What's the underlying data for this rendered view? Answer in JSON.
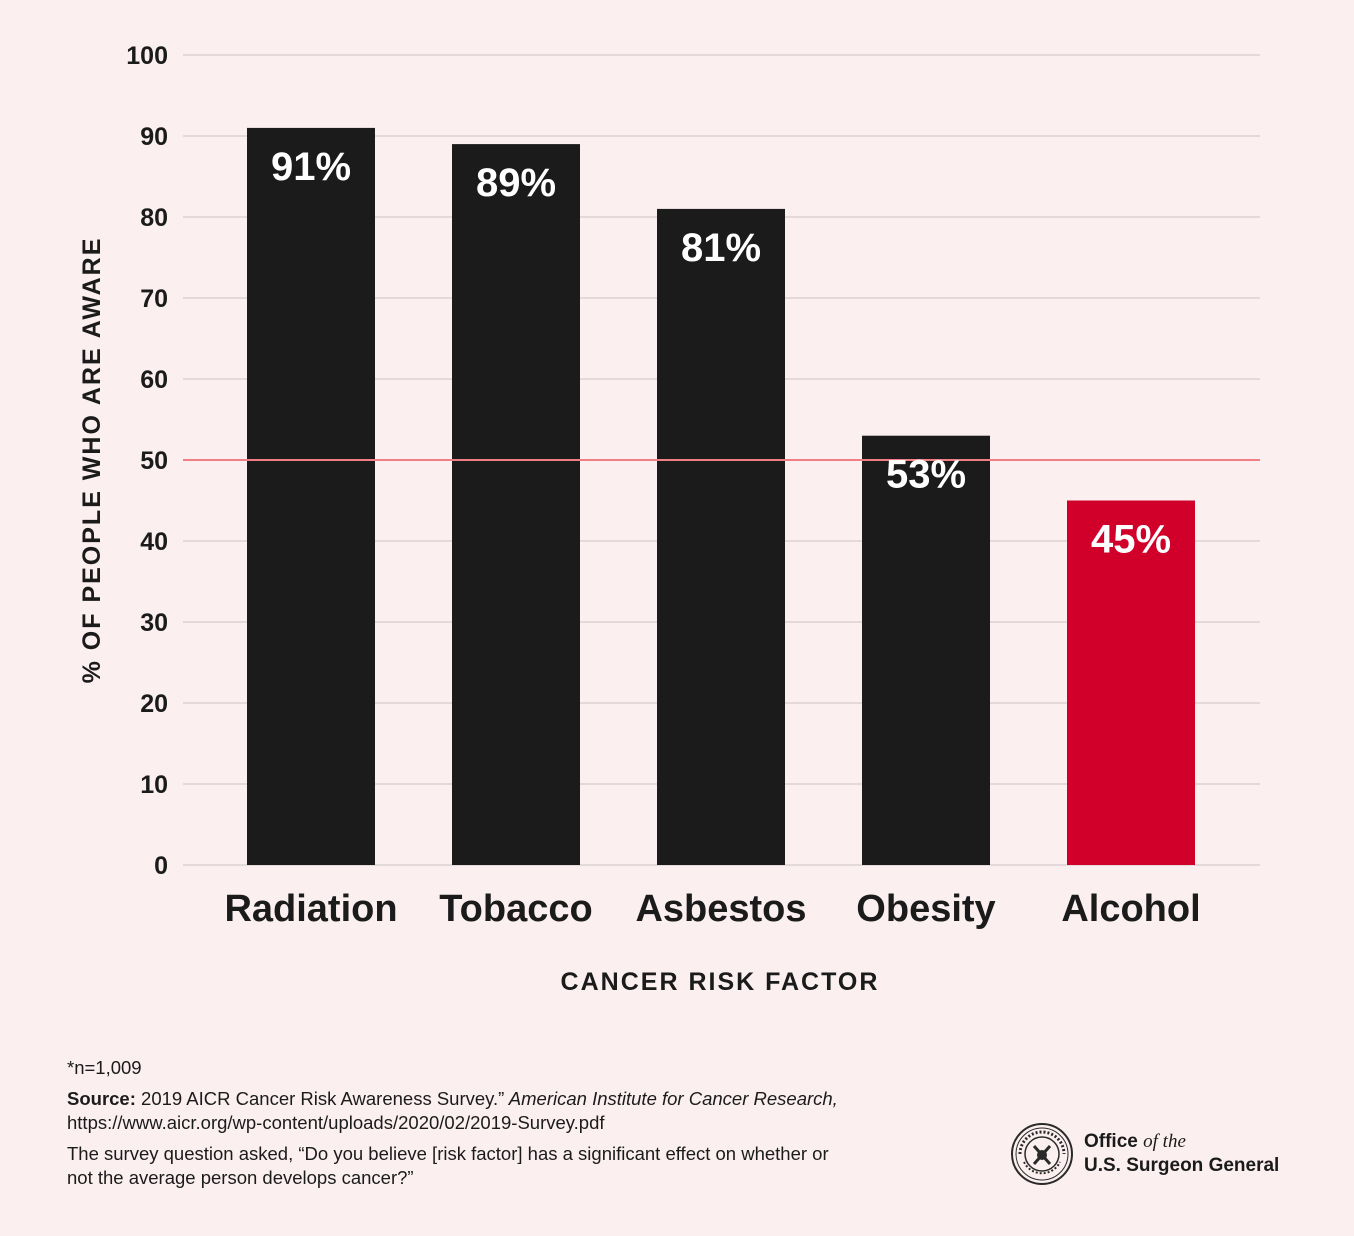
{
  "chart_data": {
    "type": "bar",
    "categories": [
      "Radiation",
      "Tobacco",
      "Asbestos",
      "Obesity",
      "Alcohol"
    ],
    "values": [
      91,
      89,
      81,
      53,
      45
    ],
    "value_labels": [
      "91%",
      "89%",
      "81%",
      "53%",
      "45%"
    ],
    "bar_colors": [
      "#1b1b1b",
      "#1b1b1b",
      "#1b1b1b",
      "#1b1b1b",
      "#d1002b"
    ],
    "xlabel": "CANCER RISK FACTOR",
    "ylabel": "% OF PEOPLE WHO ARE AWARE",
    "ylim": [
      0,
      100
    ],
    "yticks": [
      0,
      10,
      20,
      30,
      40,
      50,
      60,
      70,
      80,
      90,
      100
    ],
    "reference_line": {
      "value": 50,
      "color": "#ef7f84"
    },
    "grid": true,
    "legend": "none"
  },
  "notes": {
    "n": "*n=1,009",
    "source_label": "Source:",
    "source_text": " 2019 AICR Cancer Risk Awareness Survey.”",
    "source_italic": " American Institute for Cancer Research,",
    "source_url": " https://www.aicr.org/wp-content/uploads/2020/02/2019-Survey.pdf",
    "question": "The survey question asked, “Do you believe [risk factor] has a significant effect on whether or not the average person develops cancer?”"
  },
  "logo": {
    "office": "Office",
    "of_the": "of the",
    "name": "U.S. Surgeon General",
    "seal_icon": "surgeon-general-seal-icon"
  }
}
